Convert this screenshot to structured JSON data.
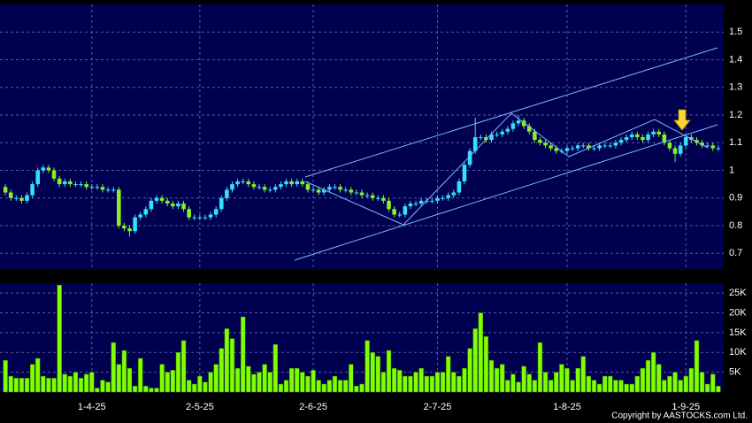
{
  "chart_data": [
    {
      "type": "candlestick",
      "up_color": "#33e0ff",
      "down_color": "#86f02a",
      "grid": true,
      "xlim": [
        -1,
        133
      ],
      "ylim": [
        0.64,
        1.6
      ],
      "yticks": [
        0.7,
        0.8,
        0.9,
        1,
        1.1,
        1.2,
        1.3,
        1.4,
        1.5
      ],
      "open": [
        0.94,
        0.92,
        0.9,
        0.9,
        0.89,
        0.91,
        0.95,
        1.0,
        1.01,
        1.0,
        0.97,
        0.95,
        0.96,
        0.95,
        0.95,
        0.95,
        0.94,
        0.94,
        0.94,
        0.93,
        0.93,
        0.93,
        0.8,
        0.79,
        0.78,
        0.83,
        0.84,
        0.86,
        0.89,
        0.9,
        0.89,
        0.88,
        0.87,
        0.88,
        0.86,
        0.83,
        0.83,
        0.83,
        0.83,
        0.84,
        0.86,
        0.9,
        0.93,
        0.95,
        0.96,
        0.96,
        0.95,
        0.94,
        0.94,
        0.93,
        0.93,
        0.94,
        0.95,
        0.96,
        0.95,
        0.96,
        0.95,
        0.93,
        0.93,
        0.92,
        0.93,
        0.94,
        0.94,
        0.93,
        0.93,
        0.92,
        0.92,
        0.91,
        0.91,
        0.9,
        0.9,
        0.89,
        0.86,
        0.84,
        0.84,
        0.87,
        0.88,
        0.88,
        0.89,
        0.89,
        0.89,
        0.9,
        0.9,
        0.91,
        0.92,
        0.96,
        1.02,
        1.07,
        1.12,
        1.12,
        1.11,
        1.13,
        1.13,
        1.14,
        1.15,
        1.17,
        1.18,
        1.16,
        1.14,
        1.11,
        1.1,
        1.09,
        1.08,
        1.07,
        1.07,
        1.08,
        1.08,
        1.09,
        1.09,
        1.08,
        1.08,
        1.09,
        1.09,
        1.09,
        1.1,
        1.11,
        1.12,
        1.13,
        1.12,
        1.11,
        1.13,
        1.14,
        1.13,
        1.1,
        1.08,
        1.06,
        1.09,
        1.12,
        1.11,
        1.1,
        1.09,
        1.09,
        1.08
      ],
      "high": [
        0.95,
        0.93,
        0.91,
        0.91,
        0.92,
        0.96,
        1.01,
        1.02,
        1.02,
        1.01,
        0.98,
        0.97,
        0.97,
        0.96,
        0.96,
        0.96,
        0.95,
        0.95,
        0.95,
        0.94,
        0.94,
        0.94,
        0.81,
        0.8,
        0.84,
        0.85,
        0.87,
        0.9,
        0.91,
        0.91,
        0.9,
        0.89,
        0.89,
        0.89,
        0.87,
        0.84,
        0.84,
        0.84,
        0.85,
        0.87,
        0.91,
        0.94,
        0.96,
        0.97,
        0.97,
        0.97,
        0.96,
        0.95,
        0.95,
        0.94,
        0.95,
        0.96,
        0.97,
        0.97,
        0.97,
        0.97,
        0.96,
        0.94,
        0.94,
        0.94,
        0.95,
        0.95,
        0.95,
        0.94,
        0.94,
        0.93,
        0.93,
        0.92,
        0.92,
        0.91,
        0.91,
        0.9,
        0.87,
        0.85,
        0.88,
        0.89,
        0.89,
        0.9,
        0.9,
        0.9,
        0.91,
        0.91,
        0.92,
        0.93,
        0.97,
        1.03,
        1.08,
        1.19,
        1.13,
        1.13,
        1.14,
        1.14,
        1.15,
        1.16,
        1.18,
        1.2,
        1.19,
        1.17,
        1.15,
        1.12,
        1.11,
        1.1,
        1.09,
        1.08,
        1.09,
        1.09,
        1.1,
        1.1,
        1.1,
        1.09,
        1.1,
        1.1,
        1.1,
        1.11,
        1.12,
        1.13,
        1.14,
        1.14,
        1.13,
        1.14,
        1.15,
        1.15,
        1.14,
        1.11,
        1.09,
        1.1,
        1.13,
        1.13,
        1.12,
        1.11,
        1.1,
        1.1,
        1.09
      ],
      "low": [
        0.91,
        0.89,
        0.89,
        0.88,
        0.88,
        0.9,
        0.94,
        0.99,
        0.99,
        0.96,
        0.94,
        0.94,
        0.94,
        0.94,
        0.94,
        0.93,
        0.93,
        0.93,
        0.92,
        0.92,
        0.92,
        0.79,
        0.78,
        0.76,
        0.77,
        0.82,
        0.83,
        0.85,
        0.88,
        0.88,
        0.87,
        0.86,
        0.86,
        0.85,
        0.82,
        0.82,
        0.82,
        0.82,
        0.82,
        0.83,
        0.85,
        0.89,
        0.92,
        0.94,
        0.95,
        0.94,
        0.93,
        0.93,
        0.92,
        0.92,
        0.92,
        0.93,
        0.94,
        0.94,
        0.94,
        0.94,
        0.92,
        0.92,
        0.91,
        0.91,
        0.92,
        0.93,
        0.92,
        0.92,
        0.91,
        0.91,
        0.9,
        0.9,
        0.89,
        0.89,
        0.88,
        0.85,
        0.83,
        0.83,
        0.83,
        0.86,
        0.87,
        0.87,
        0.88,
        0.88,
        0.88,
        0.89,
        0.89,
        0.9,
        0.91,
        0.95,
        1.01,
        1.06,
        1.11,
        1.1,
        1.1,
        1.12,
        1.12,
        1.13,
        1.14,
        1.16,
        1.15,
        1.13,
        1.1,
        1.09,
        1.08,
        1.07,
        1.06,
        1.06,
        1.06,
        1.07,
        1.07,
        1.08,
        1.07,
        1.07,
        1.07,
        1.08,
        1.08,
        1.08,
        1.09,
        1.1,
        1.11,
        1.11,
        1.1,
        1.1,
        1.12,
        1.12,
        1.09,
        1.07,
        1.03,
        1.05,
        1.08,
        1.1,
        1.09,
        1.08,
        1.08,
        1.07,
        1.07
      ],
      "close": [
        0.92,
        0.9,
        0.9,
        0.89,
        0.91,
        0.95,
        1.0,
        1.01,
        1.0,
        0.97,
        0.95,
        0.96,
        0.95,
        0.95,
        0.95,
        0.94,
        0.94,
        0.94,
        0.93,
        0.93,
        0.93,
        0.8,
        0.79,
        0.78,
        0.83,
        0.84,
        0.86,
        0.89,
        0.9,
        0.89,
        0.88,
        0.87,
        0.88,
        0.86,
        0.83,
        0.83,
        0.83,
        0.83,
        0.84,
        0.86,
        0.9,
        0.93,
        0.95,
        0.96,
        0.96,
        0.95,
        0.94,
        0.94,
        0.93,
        0.93,
        0.94,
        0.95,
        0.96,
        0.95,
        0.96,
        0.95,
        0.93,
        0.93,
        0.92,
        0.93,
        0.94,
        0.94,
        0.93,
        0.93,
        0.92,
        0.92,
        0.91,
        0.91,
        0.9,
        0.9,
        0.89,
        0.86,
        0.84,
        0.84,
        0.87,
        0.88,
        0.88,
        0.89,
        0.89,
        0.89,
        0.9,
        0.9,
        0.91,
        0.92,
        0.96,
        1.02,
        1.07,
        1.12,
        1.12,
        1.11,
        1.13,
        1.13,
        1.14,
        1.15,
        1.17,
        1.18,
        1.16,
        1.14,
        1.11,
        1.1,
        1.09,
        1.08,
        1.07,
        1.07,
        1.08,
        1.08,
        1.09,
        1.09,
        1.08,
        1.08,
        1.09,
        1.09,
        1.09,
        1.1,
        1.11,
        1.12,
        1.13,
        1.12,
        1.11,
        1.13,
        1.14,
        1.13,
        1.1,
        1.08,
        1.06,
        1.09,
        1.12,
        1.11,
        1.1,
        1.09,
        1.09,
        1.08,
        1.08
      ]
    },
    {
      "type": "bar",
      "color": "#80ff00",
      "grid": true,
      "xlim": [
        -1,
        133
      ],
      "ylim": [
        0,
        27500
      ],
      "xticks": [
        {
          "value": 16,
          "label": "1-4-25"
        },
        {
          "value": 36,
          "label": "2-5-25"
        },
        {
          "value": 57,
          "label": "2-6-25"
        },
        {
          "value": 80,
          "label": "2-7-25"
        },
        {
          "value": 104,
          "label": "1-8-25"
        },
        {
          "value": 126,
          "label": "1-9-25"
        }
      ],
      "yticks": [
        {
          "value": 5000,
          "label": "5K"
        },
        {
          "value": 10000,
          "label": "10K"
        },
        {
          "value": 15000,
          "label": "15K"
        },
        {
          "value": 20000,
          "label": "20K"
        },
        {
          "value": 25000,
          "label": "25K"
        }
      ],
      "values": [
        8000,
        4000,
        3500,
        3500,
        3500,
        7000,
        8500,
        4000,
        3500,
        3500,
        27000,
        4500,
        4000,
        5000,
        3500,
        4500,
        5000,
        1000,
        3000,
        2500,
        12500,
        7000,
        10500,
        6000,
        1500,
        8500,
        1500,
        1000,
        1000,
        7000,
        5000,
        5500,
        10000,
        13000,
        3000,
        2000,
        4000,
        2500,
        5000,
        7000,
        11000,
        16000,
        13500,
        6000,
        19000,
        6500,
        4500,
        5000,
        7000,
        5000,
        12000,
        2000,
        3000,
        6000,
        6000,
        5000,
        4000,
        5500,
        3000,
        2000,
        3000,
        4000,
        3000,
        3000,
        7000,
        1500,
        2000,
        13000,
        10000,
        9000,
        5000,
        10500,
        6000,
        5500,
        4000,
        4000,
        5000,
        6000,
        4000,
        4000,
        5000,
        5000,
        9000,
        5000,
        4000,
        6000,
        11000,
        16000,
        20000,
        14000,
        8000,
        6000,
        7000,
        3000,
        4500,
        2500,
        6500,
        4500,
        3000,
        12500,
        5000,
        3000,
        5000,
        7000,
        6000,
        3000,
        6000,
        9000,
        4000,
        3000,
        2000,
        4000,
        4000,
        3000,
        3000,
        2000,
        2000,
        4000,
        6000,
        8000,
        10000,
        7000,
        3000,
        4000,
        5000,
        3000,
        4000,
        6000,
        13000,
        5000,
        2000,
        4500,
        1500
      ]
    }
  ],
  "copyright": "Copyright by AASTOCKS.com Ltd."
}
